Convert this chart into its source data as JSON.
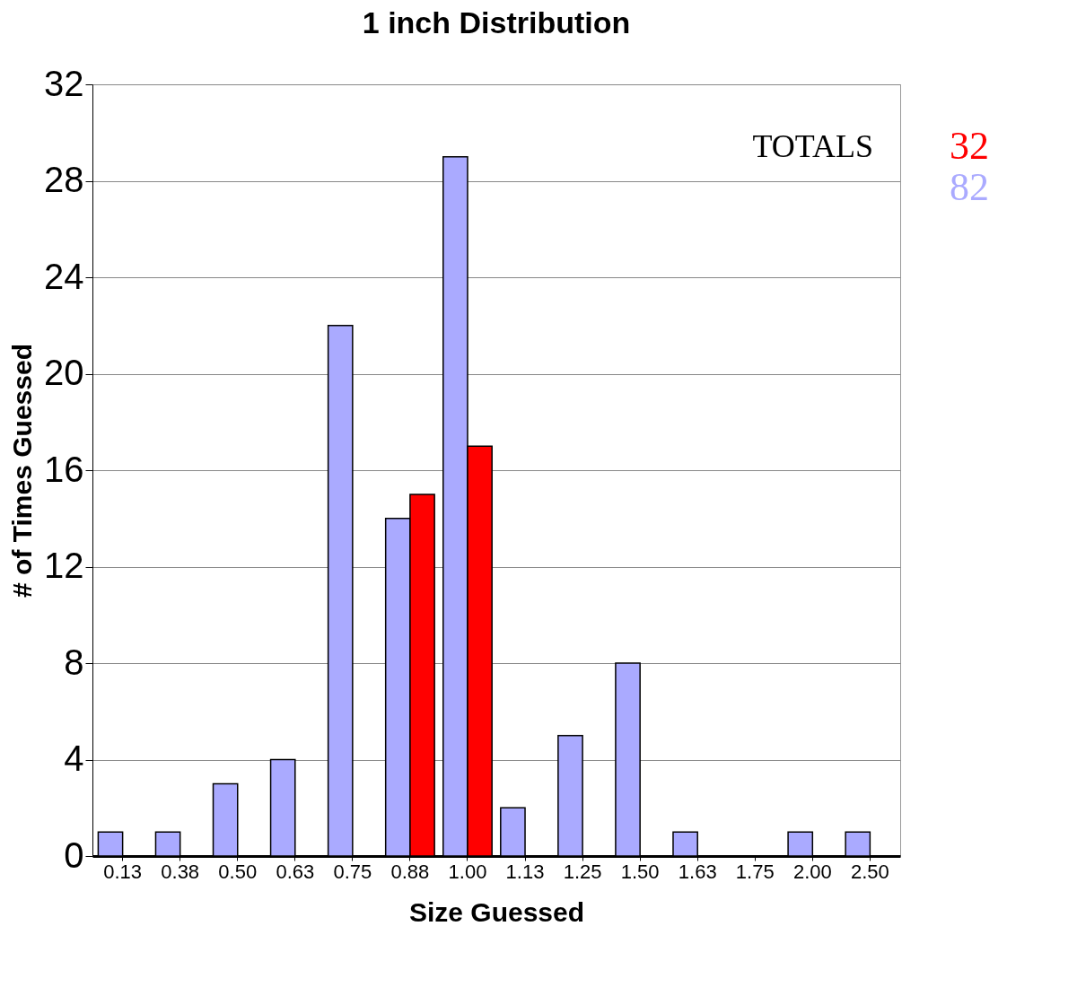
{
  "chart_data": {
    "type": "bar",
    "title": "1 inch Distribution",
    "xlabel": "Size Guessed",
    "ylabel": "# of Times Guessed",
    "categories": [
      "0.13",
      "0.38",
      "0.50",
      "0.63",
      "0.75",
      "0.88",
      "1.00",
      "1.13",
      "1.25",
      "1.50",
      "1.63",
      "1.75",
      "2.00",
      "2.50"
    ],
    "series": [
      {
        "color": "#aaaaff",
        "values": [
          1,
          1,
          3,
          4,
          22,
          14,
          29,
          2,
          5,
          8,
          1,
          null,
          1,
          1
        ]
      },
      {
        "color": "#ff0000",
        "values": [
          null,
          null,
          null,
          null,
          null,
          15,
          17,
          null,
          null,
          null,
          null,
          null,
          null,
          null
        ]
      }
    ],
    "ylim": [
      0,
      32
    ],
    "yticks": [
      0,
      4,
      8,
      12,
      16,
      20,
      24,
      28,
      32
    ],
    "grid": "y",
    "legend": false,
    "annotations": [
      "TOTALS",
      "32",
      "82"
    ]
  }
}
